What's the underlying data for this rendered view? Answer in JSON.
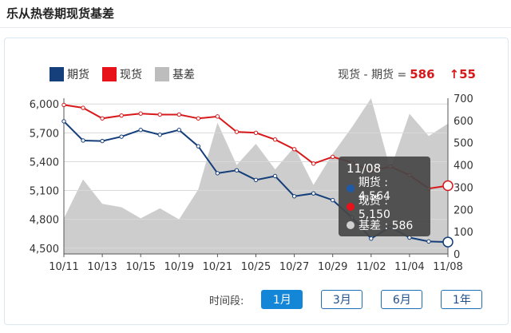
{
  "page": {
    "title": "乐从热卷期现货基差"
  },
  "legend": [
    {
      "label": "期货",
      "color": "#143f7a"
    },
    {
      "label": "现货",
      "color": "#e8121b"
    },
    {
      "label": "基差",
      "color": "#bdbdbd"
    }
  ],
  "summary": {
    "text": "现货 - 期货 =",
    "value": "586",
    "change": "↑55"
  },
  "tooltip": {
    "date": "11/08",
    "rows": [
      {
        "label": "期货 : 4,564",
        "color": "#143f7a"
      },
      {
        "label": "现货 : 5,150",
        "color": "#e8121b"
      },
      {
        "label": "基差 : 586",
        "color": "#c8c8c8"
      }
    ]
  },
  "range": {
    "label": "时间段:",
    "buttons": [
      {
        "label": "1月",
        "active": true
      },
      {
        "label": "3月",
        "active": false
      },
      {
        "label": "6月",
        "active": false
      },
      {
        "label": "1年",
        "active": false
      }
    ]
  },
  "chart_data": {
    "type": "line",
    "x": [
      "10/11",
      "10/12",
      "10/13",
      "10/14",
      "10/15",
      "10/18",
      "10/19",
      "10/20",
      "10/21",
      "10/22",
      "10/25",
      "10/26",
      "10/27",
      "10/28",
      "10/29",
      "11/01",
      "11/02",
      "11/03",
      "11/04",
      "11/05",
      "11/08"
    ],
    "x_tick_labels": [
      "10/11",
      "10/13",
      "10/15",
      "10/19",
      "10/21",
      "10/25",
      "10/27",
      "10/29",
      "11/02",
      "11/04",
      "11/08"
    ],
    "y_left": {
      "ticks": [
        4500,
        4800,
        5100,
        5400,
        5700,
        6000
      ],
      "tick_labels": [
        "4,500",
        "4,800",
        "5,100",
        "5,400",
        "5,700",
        "6,000"
      ],
      "ylim": [
        4440,
        6060
      ]
    },
    "y_right": {
      "ticks": [
        0,
        100,
        200,
        300,
        400,
        500,
        600,
        700
      ],
      "tick_labels": [
        "0",
        "100",
        "200",
        "300",
        "400",
        "500",
        "600",
        "700"
      ],
      "ylim": [
        0,
        700
      ]
    },
    "series": [
      {
        "name": "期货",
        "axis": "left",
        "type": "line",
        "color": "#143f7a",
        "values": [
          5820,
          5620,
          5615,
          5660,
          5730,
          5680,
          5730,
          5560,
          5280,
          5310,
          5210,
          5250,
          5040,
          5070,
          5000,
          4820,
          4600,
          4720,
          4610,
          4570,
          4564
        ]
      },
      {
        "name": "现货",
        "axis": "left",
        "type": "line",
        "color": "#d7191c",
        "values": [
          5990,
          5960,
          5850,
          5880,
          5900,
          5890,
          5890,
          5850,
          5870,
          5710,
          5700,
          5630,
          5530,
          5380,
          5450,
          5390,
          5300,
          5350,
          5260,
          5120,
          5150
        ]
      },
      {
        "name": "基差",
        "axis": "right",
        "type": "area",
        "color": "#c8c8c8",
        "values": [
          160,
          335,
          225,
          210,
          160,
          205,
          155,
          290,
          590,
          400,
          495,
          380,
          480,
          310,
          450,
          570,
          700,
          380,
          630,
          530,
          586
        ]
      }
    ],
    "grid": true,
    "legend_position": "top-left"
  }
}
